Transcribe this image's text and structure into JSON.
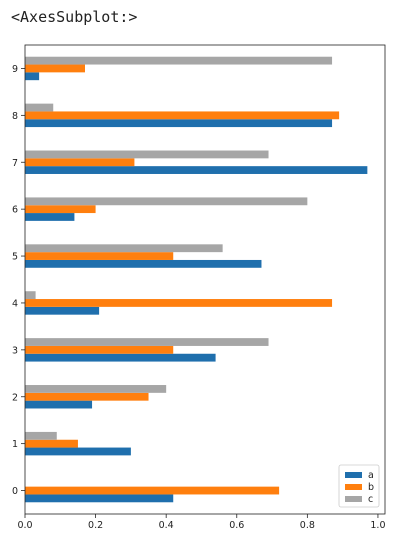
{
  "output": {
    "repr_text": "<AxesSubplot:>"
  },
  "chart_data": {
    "type": "bar",
    "orientation": "horizontal",
    "categories": [
      "0",
      "1",
      "2",
      "3",
      "4",
      "5",
      "6",
      "7",
      "8",
      "9"
    ],
    "series": [
      {
        "name": "a",
        "color": "#1f6fad",
        "values": [
          0.42,
          0.3,
          0.19,
          0.54,
          0.21,
          0.67,
          0.14,
          0.97,
          0.87,
          0.04
        ]
      },
      {
        "name": "b",
        "color": "#ff7f0e",
        "values": [
          0.72,
          0.15,
          0.35,
          0.42,
          0.87,
          0.42,
          0.2,
          0.31,
          0.89,
          0.17
        ]
      },
      {
        "name": "c",
        "color": "#a6a6a6",
        "values": [
          0.0,
          0.09,
          0.4,
          0.69,
          0.03,
          0.56,
          0.8,
          0.69,
          0.08,
          0.87
        ]
      }
    ],
    "xlim": [
      0.0,
      1.02
    ],
    "xticks": [
      0.0,
      0.2,
      0.4,
      0.6,
      0.8,
      1.0
    ],
    "xtick_labels": [
      "0.0",
      "0.2",
      "0.4",
      "0.6",
      "0.8",
      "1.0"
    ],
    "legend_position": "lower-right",
    "grid": false,
    "title": "",
    "xlabel": "",
    "ylabel": ""
  }
}
